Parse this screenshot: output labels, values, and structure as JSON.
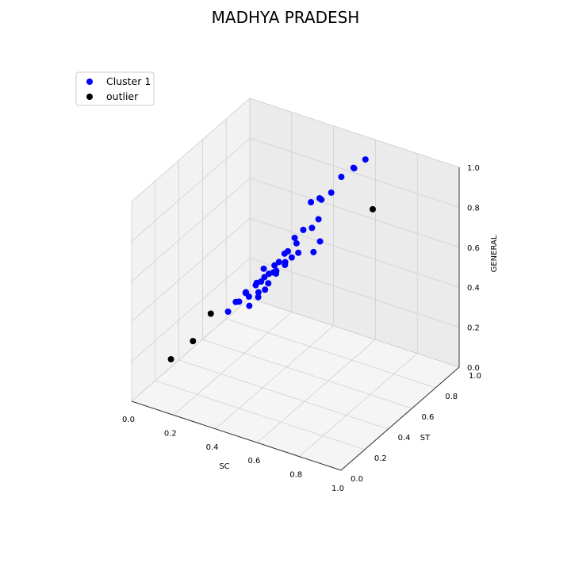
{
  "chart_data": {
    "type": "scatter",
    "projection": "3d",
    "title": "MADHYA PRADESH",
    "xlabel": "SC",
    "ylabel": "ST",
    "zlabel": "GENERAL",
    "xlim": [
      0,
      1
    ],
    "ylim": [
      0,
      1
    ],
    "zlim": [
      0,
      1
    ],
    "ticks": [
      "0.0",
      "0.2",
      "0.4",
      "0.6",
      "0.8",
      "1.0"
    ],
    "grid": true,
    "legend_position": "top-left",
    "series": [
      {
        "name": "Cluster 1",
        "color": "#0000ff",
        "points": [
          [
            0.45,
            0.72,
            0.78
          ],
          [
            0.48,
            0.74,
            0.8
          ],
          [
            0.5,
            0.72,
            0.81
          ],
          [
            0.53,
            0.75,
            0.84
          ],
          [
            0.55,
            0.8,
            0.9
          ],
          [
            0.58,
            0.85,
            0.93
          ],
          [
            0.6,
            0.82,
            0.95
          ],
          [
            0.62,
            0.88,
            0.97
          ],
          [
            0.52,
            0.66,
            0.75
          ],
          [
            0.47,
            0.62,
            0.7
          ],
          [
            0.42,
            0.55,
            0.6
          ],
          [
            0.44,
            0.6,
            0.66
          ],
          [
            0.5,
            0.64,
            0.71
          ],
          [
            0.46,
            0.58,
            0.65
          ],
          [
            0.4,
            0.5,
            0.56
          ],
          [
            0.38,
            0.45,
            0.52
          ],
          [
            0.36,
            0.42,
            0.5
          ],
          [
            0.33,
            0.38,
            0.46
          ],
          [
            0.3,
            0.35,
            0.42
          ],
          [
            0.28,
            0.32,
            0.38
          ],
          [
            0.35,
            0.43,
            0.48
          ],
          [
            0.37,
            0.44,
            0.5
          ],
          [
            0.41,
            0.52,
            0.57
          ],
          [
            0.43,
            0.56,
            0.61
          ],
          [
            0.39,
            0.47,
            0.53
          ],
          [
            0.32,
            0.4,
            0.45
          ],
          [
            0.31,
            0.36,
            0.42
          ],
          [
            0.34,
            0.39,
            0.44
          ],
          [
            0.36,
            0.48,
            0.54
          ],
          [
            0.4,
            0.49,
            0.53
          ],
          [
            0.42,
            0.48,
            0.55
          ],
          [
            0.44,
            0.52,
            0.58
          ],
          [
            0.46,
            0.54,
            0.6
          ],
          [
            0.48,
            0.56,
            0.62
          ],
          [
            0.45,
            0.5,
            0.58
          ],
          [
            0.43,
            0.46,
            0.55
          ],
          [
            0.38,
            0.4,
            0.47
          ],
          [
            0.41,
            0.43,
            0.51
          ],
          [
            0.37,
            0.34,
            0.43
          ],
          [
            0.39,
            0.38,
            0.46
          ],
          [
            0.4,
            0.42,
            0.48
          ],
          [
            0.53,
            0.6,
            0.62
          ],
          [
            0.55,
            0.62,
            0.67
          ]
        ]
      },
      {
        "name": "outlier",
        "color": "#000000",
        "points": [
          [
            0.18,
            0.2,
            0.26
          ],
          [
            0.22,
            0.28,
            0.37
          ],
          [
            0.12,
            0.12,
            0.19
          ],
          [
            0.7,
            0.8,
            0.79
          ]
        ]
      }
    ]
  }
}
